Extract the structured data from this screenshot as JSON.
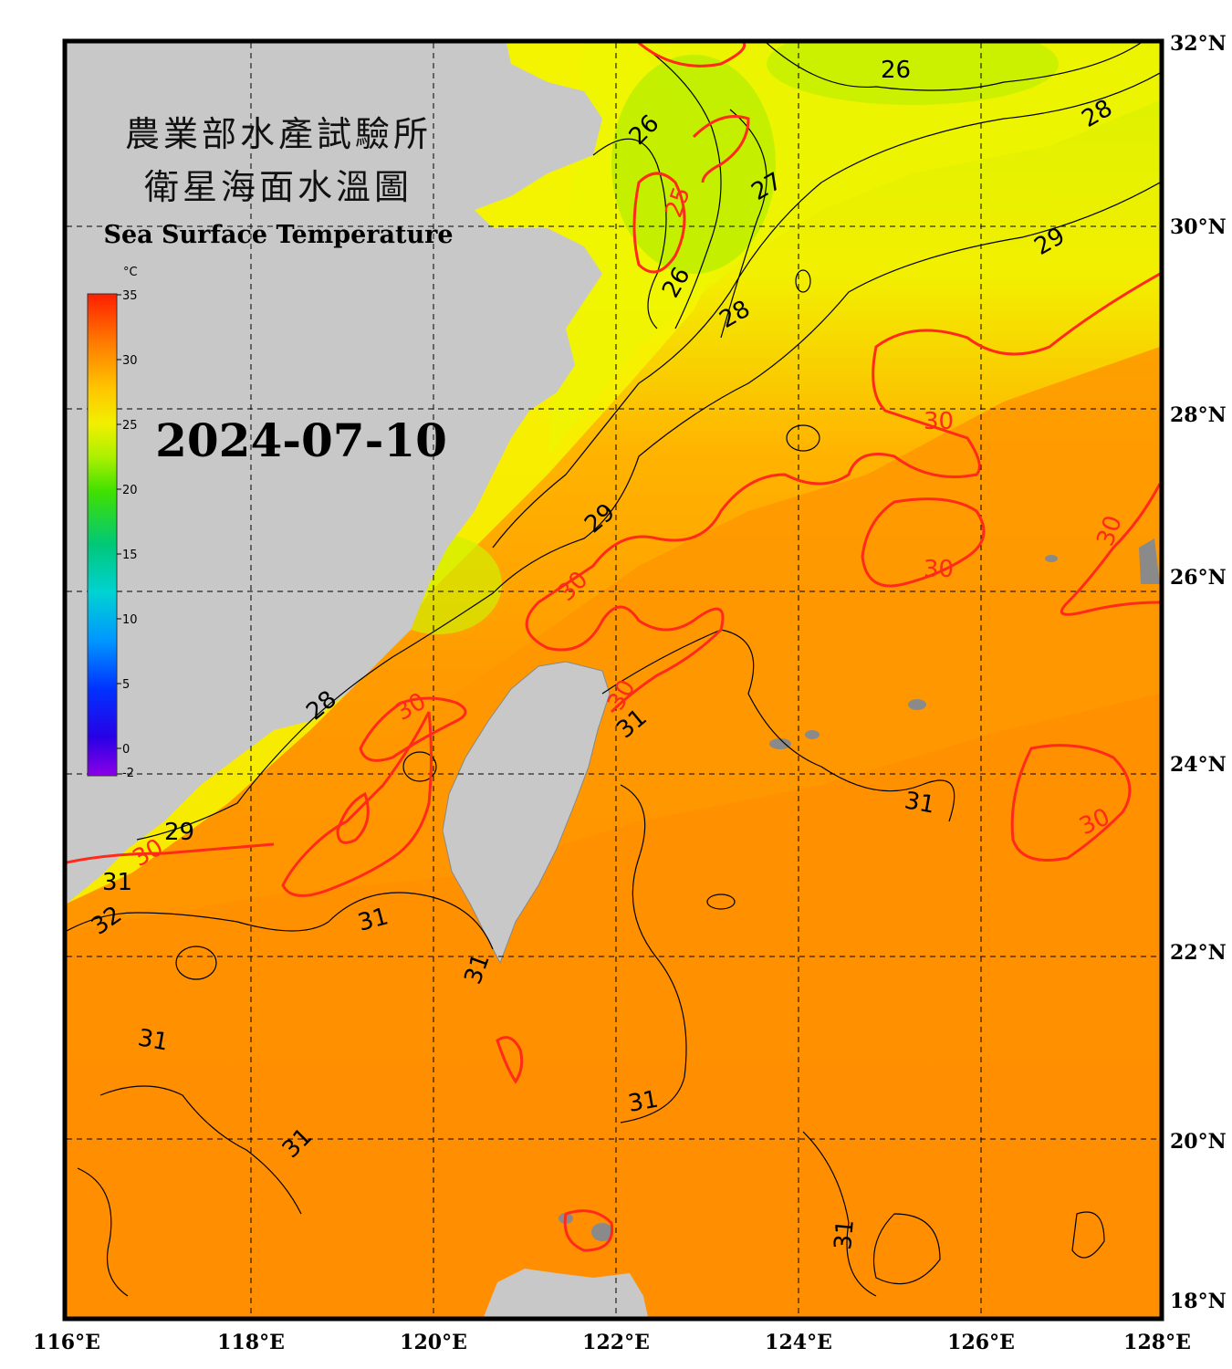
{
  "title": {
    "line1": "農業部水產試驗所",
    "line2": "衛星海面水溫圖",
    "english": "Sea Surface Temperature"
  },
  "date": "2024-07-10",
  "colorbar": {
    "unit": "°C",
    "ticks": [
      "35",
      "30",
      "25",
      "20",
      "15",
      "10",
      "5",
      "0",
      "-2"
    ],
    "colors": [
      "#ff1e00",
      "#ff7a00",
      "#ffc800",
      "#f0f000",
      "#aaf000",
      "#40e000",
      "#00c878",
      "#00d2d2",
      "#0096ff",
      "#0032ff",
      "#2800e6",
      "#8c00e6"
    ]
  },
  "axes": {
    "longitude_labels": [
      "116°E",
      "118°E",
      "120°E",
      "122°E",
      "124°E",
      "126°E",
      "128°E"
    ],
    "latitude_labels": [
      "32°N",
      "30°N",
      "28°N",
      "26°N",
      "24°N",
      "22°N",
      "20°N",
      "18°N"
    ]
  },
  "contour_labels": {
    "red": [
      "30",
      "30",
      "30",
      "30",
      "30",
      "30",
      "30",
      "30",
      "30",
      "25"
    ],
    "black": [
      "26",
      "26",
      "26",
      "27",
      "28",
      "28",
      "29",
      "29",
      "29",
      "28",
      "31",
      "31",
      "31",
      "31",
      "31",
      "31",
      "31",
      "31",
      "32",
      "31"
    ]
  },
  "colors": {
    "land": "#c8c8c8",
    "sea_warm": "#ff8c00",
    "sea_cool": "#e6f000",
    "contour_30": "#ff2a1a",
    "contour_other": "#000000"
  }
}
